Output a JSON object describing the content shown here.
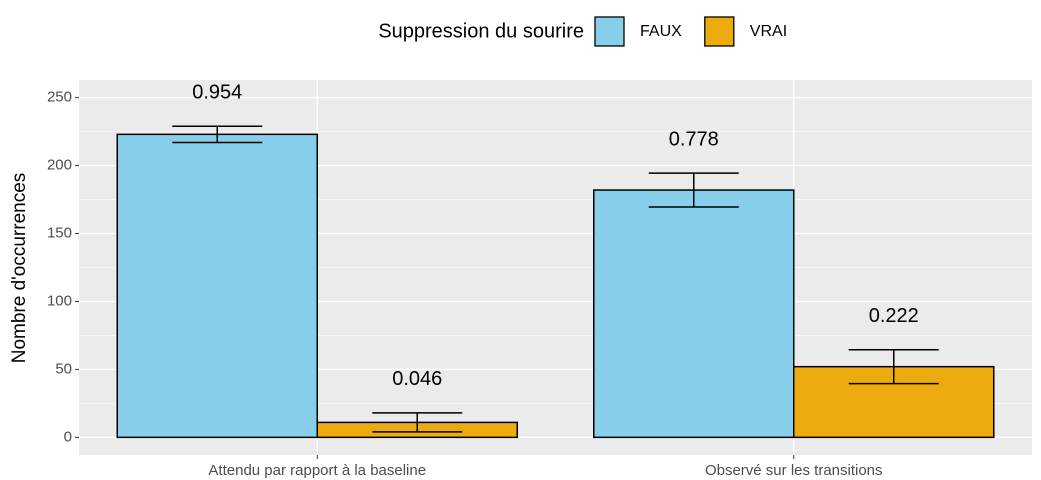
{
  "chart_data": {
    "type": "bar",
    "y_label": "Nombre d'occurrences",
    "legend_title": "Suppression du sourire",
    "categories": [
      "Attendu par rapport à la baseline",
      "Observé sur les transitions"
    ],
    "series": [
      {
        "name": "FAUX",
        "color": "#87ceeb",
        "values": [
          223,
          182
        ],
        "errors": [
          6,
          12.5
        ],
        "proportions": [
          0.954,
          0.778
        ]
      },
      {
        "name": "VRAI",
        "color": "#eeab10",
        "values": [
          11,
          52
        ],
        "errors": [
          7,
          12.5
        ],
        "proportions": [
          0.046,
          0.222
        ]
      }
    ],
    "ylim": [
      -13,
      263
    ],
    "yticks": [
      0,
      50,
      100,
      150,
      200,
      250
    ],
    "yticks_minor": [
      25,
      75,
      125,
      175,
      225
    ],
    "grid": true,
    "legend": "top"
  }
}
